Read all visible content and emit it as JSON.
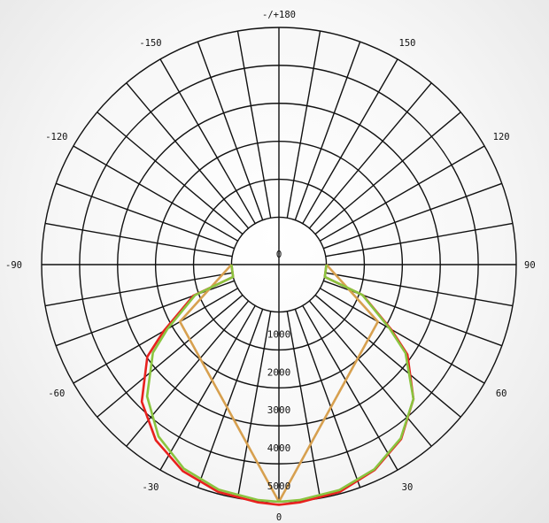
{
  "chart_data": {
    "type": "polar",
    "title": "",
    "angle_unit": "degrees",
    "angle_labels": [
      "-/+180",
      "-150",
      "150",
      "-120",
      "120",
      "-90",
      "90",
      "-60",
      "60",
      "-30",
      "30",
      "0"
    ],
    "radial_ticks": [
      0,
      1000,
      2000,
      3000,
      4000,
      5000
    ],
    "radial_tick_labels": [
      "0",
      "1000",
      "2000",
      "3000",
      "4000",
      "5000"
    ],
    "r_max": 5000,
    "grid": true,
    "series": [
      {
        "color": "#e8211e",
        "angles": [
          -90,
          -75,
          -70,
          -60,
          -55,
          -45,
          -35,
          -25,
          -15,
          -5,
          0,
          5,
          15,
          25,
          35,
          45,
          55,
          60,
          70,
          75,
          90
        ],
        "values": [
          0,
          0,
          1150,
          2260,
          2980,
          3860,
          4400,
          4750,
          4950,
          5040,
          5080,
          5040,
          4950,
          4720,
          4360,
          3760,
          2880,
          2160,
          1100,
          0,
          0
        ]
      },
      {
        "color": "#8ac43f",
        "angles": [
          -90,
          -75,
          -70,
          -60,
          -55,
          -45,
          -35,
          -25,
          -15,
          -5,
          0,
          5,
          15,
          25,
          35,
          45,
          55,
          60,
          70,
          75,
          90
        ],
        "values": [
          0,
          0,
          1100,
          2140,
          2800,
          3660,
          4280,
          4680,
          4890,
          4980,
          5000,
          4980,
          4900,
          4700,
          4340,
          3760,
          2820,
          2120,
          1090,
          0,
          0
        ]
      },
      {
        "color": "#d7a04f",
        "angles": [
          -90,
          -60,
          0,
          60,
          90
        ],
        "values": [
          0,
          1760,
          5000,
          1760,
          0
        ]
      }
    ]
  }
}
